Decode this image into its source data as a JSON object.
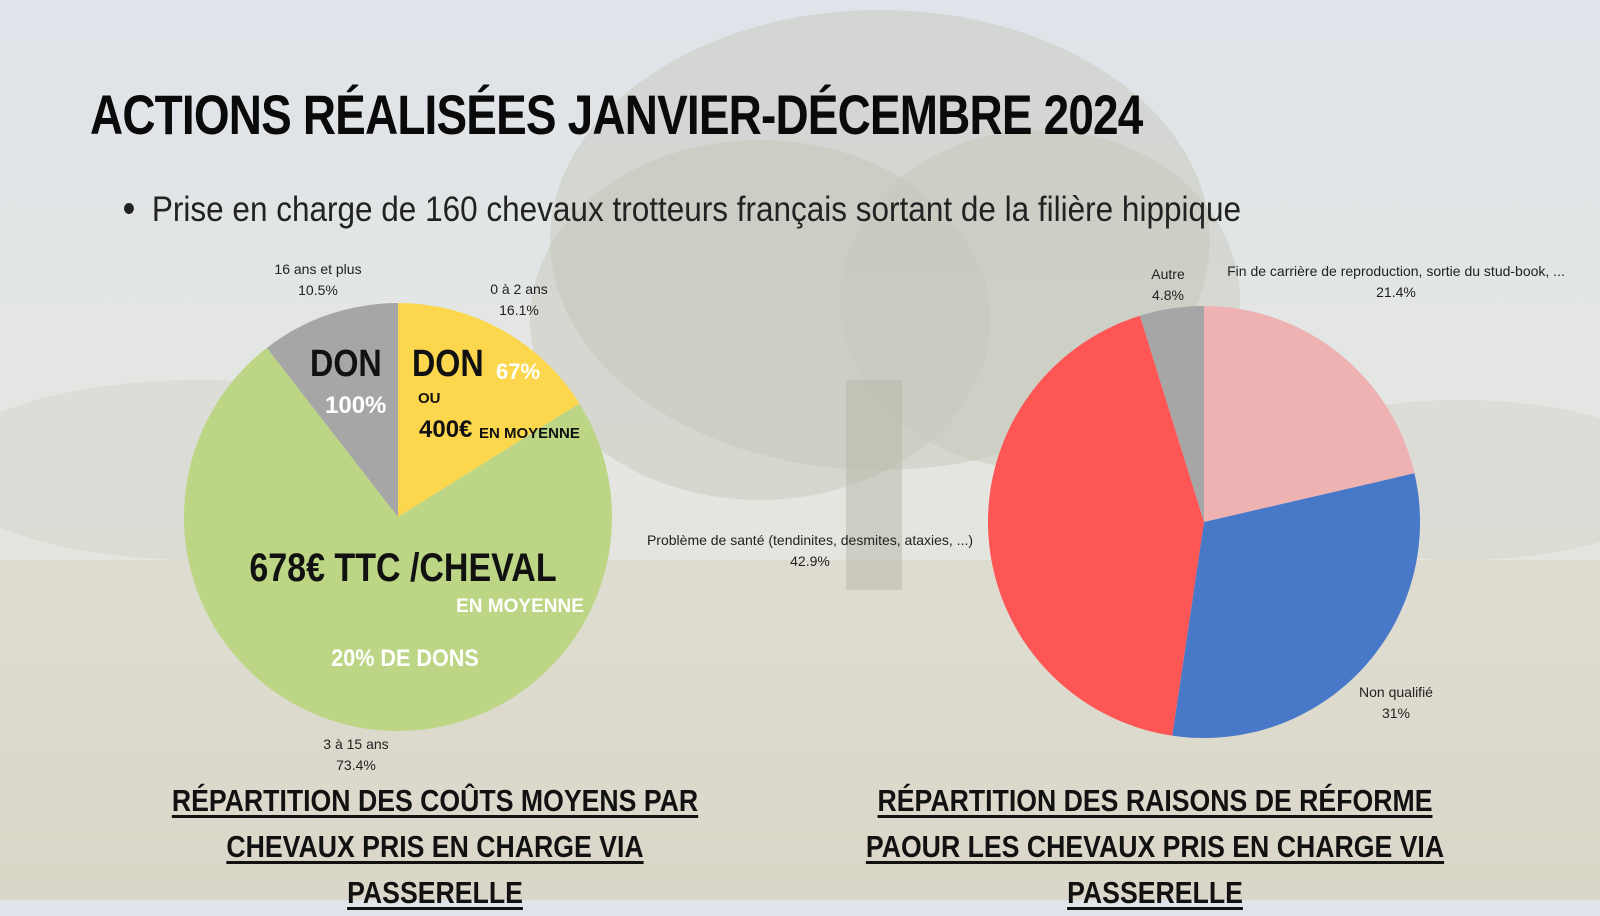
{
  "title": "ACTIONS RÉALISÉES JANVIER-DÉCEMBRE 2024",
  "bullet": "Prise en charge de 160 chevaux trotteurs français sortant de la filière hippique",
  "colors": {
    "green": "#bcd685",
    "yellow": "#fcd74e",
    "grey": "#a6a6a6",
    "pink": "#efb2b2",
    "blue": "#4879c8",
    "red": "#fd5655"
  },
  "overlay": {
    "don_yellow": "DON",
    "pct_67": "67%",
    "ou": "OU",
    "amount_400": "400€",
    "en_moyenne_small": "EN MOYENNE",
    "don_grey": "DON",
    "pct_100": "100%",
    "cost_main": "678€ TTC /CHEVAL",
    "en_moyenne_green": "EN MOYENNE",
    "dons_20": "20% DE DONS"
  },
  "chart_data": [
    {
      "type": "pie",
      "title": "RÉPARTITION DES COÛTS MOYENS PAR CHEVAUX PRIS EN CHARGE VIA PASSERELLE",
      "slices": [
        {
          "label": "0 à 2 ans",
          "value": 16.1,
          "value_label": "16.1%",
          "color": "#fcd74e"
        },
        {
          "label": "3 à 15 ans",
          "value": 73.4,
          "value_label": "73.4%",
          "color": "#bcd685"
        },
        {
          "label": "16 ans et plus",
          "value": 10.5,
          "value_label": "10.5%",
          "color": "#a6a6a6"
        }
      ]
    },
    {
      "type": "pie",
      "title": "RÉPARTITION DES RAISONS DE RÉFORME PAOUR LES CHEVAUX PRIS EN CHARGE VIA PASSERELLE",
      "slices": [
        {
          "label": "Fin de carrière de reproduction, sortie du stud-book, ...",
          "value": 21.4,
          "value_label": "21.4%",
          "color": "#efb2b2"
        },
        {
          "label": "Non qualifié",
          "value": 31,
          "value_label": "31%",
          "color": "#4879c8"
        },
        {
          "label": "Problème de santé (tendinites, desmites, ataxies, ...)",
          "value": 42.9,
          "value_label": "42.9%",
          "color": "#fd5655"
        },
        {
          "label": "Autre",
          "value": 4.8,
          "value_label": "4.8%",
          "color": "#a6a6a6"
        }
      ]
    }
  ]
}
